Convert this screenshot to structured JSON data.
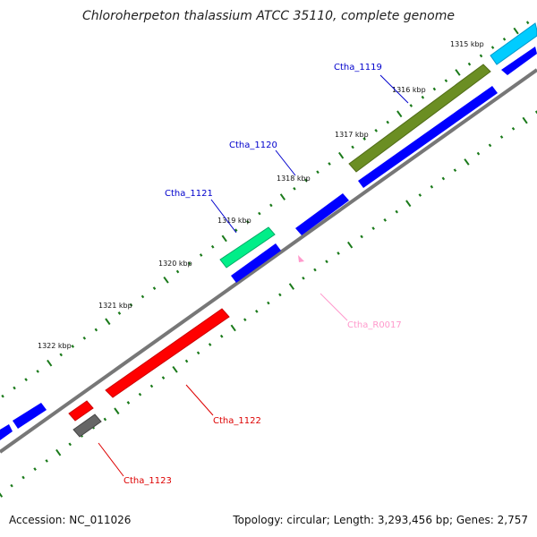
{
  "title": "Chloroherpeton thalassium ATCC 35110, complete genome",
  "footer": {
    "accession": "Accession: NC_011026",
    "summary": "Topology: circular; Length: 3,293,456 bp; Genes: 2,757"
  },
  "tick_labels": [
    "1315 kbp",
    "1316 kbp",
    "1317 kbp",
    "1318 kbp",
    "1319 kbp",
    "1320 kbp",
    "1321 kbp",
    "1322 kbp"
  ],
  "genes": [
    {
      "name": "Ctha_1119",
      "color": "#0000cc",
      "feature_color": "#6b8e23"
    },
    {
      "name": "Ctha_1120",
      "color": "#0000cc",
      "feature_color": "#0000ff"
    },
    {
      "name": "Ctha_1121",
      "color": "#0000cc",
      "feature_color": "#00ee88"
    },
    {
      "name": "Ctha_R0017",
      "color": "#ff99cc",
      "feature_color": "#ff99cc"
    },
    {
      "name": "Ctha_1122",
      "color": "#dd0000",
      "feature_color": "#ff0000"
    },
    {
      "name": "Ctha_1123",
      "color": "#dd0000",
      "feature_color": "#666666"
    }
  ],
  "colors": {
    "backbone": "#777777",
    "ticks": "#1a7a1a",
    "cds_forward": "#0000ff",
    "cds_reverse": "#0000ff",
    "extra_feature": "#00ccff"
  }
}
